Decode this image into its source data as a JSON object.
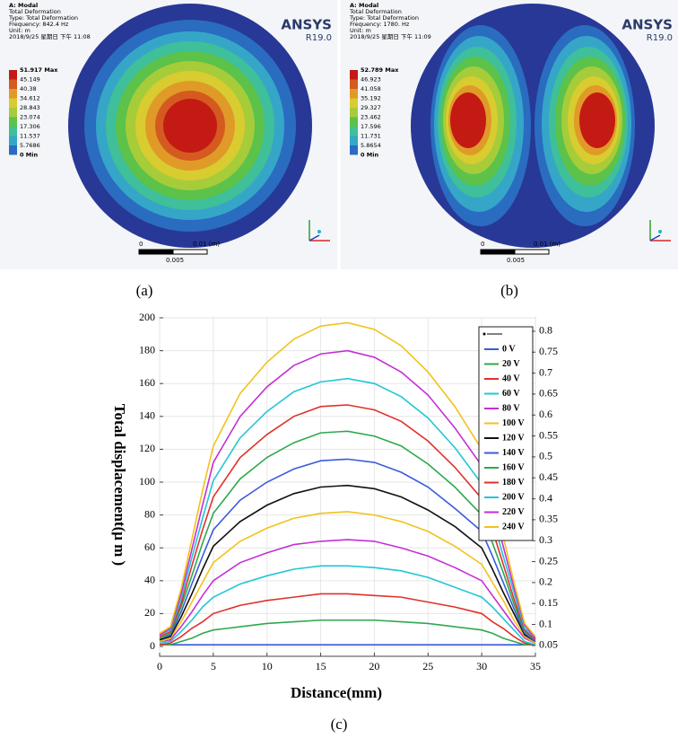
{
  "panels": [
    {
      "label": "(a)",
      "header": [
        "A: Modal",
        "Total Deformation",
        "Type: Total Deformation",
        "Frequency: 842.4 Hz",
        "Unit: m",
        "2018/9/25 星期日 下午 11:08"
      ],
      "legend": [
        "51.917 Max",
        "45.149",
        "40.38",
        "34.612",
        "28.843",
        "23.074",
        "17.306",
        "11.537",
        "5.7686",
        "0 Min"
      ],
      "brand": "ANSYS",
      "version": "R19.0",
      "scale": [
        "0",
        "0.01 (m)",
        "0.005"
      ]
    },
    {
      "label": "(b)",
      "header": [
        "A: Modal",
        "Total Deformation",
        "Type: Total Deformation",
        "Frequency: 1780. Hz",
        "Unit: m",
        "2018/9/25 星期日 下午 11:09"
      ],
      "legend": [
        "52.789 Max",
        "46.923",
        "41.058",
        "35.192",
        "29.327",
        "23.462",
        "17.596",
        "11.731",
        "5.8654",
        "0 Min"
      ],
      "brand": "ANSYS",
      "version": "R19.0",
      "scale": [
        "0",
        "0.01 (m)",
        "0.005"
      ]
    }
  ],
  "chart_data": {
    "type": "line",
    "label": "(c)",
    "x_label": "Distance(mm)",
    "y_label": "Total displacement(μ m )",
    "x": [
      0,
      1,
      2,
      3,
      4,
      5,
      7.5,
      10,
      12.5,
      15,
      17.5,
      20,
      22.5,
      25,
      27.5,
      30,
      31,
      32,
      33,
      34,
      35
    ],
    "xlim": [
      0,
      35
    ],
    "xticks": [
      0,
      5,
      10,
      15,
      20,
      25,
      30,
      35
    ],
    "ylim": [
      -6,
      200
    ],
    "yticks": [
      0,
      20,
      40,
      60,
      80,
      100,
      120,
      140,
      160,
      180,
      200
    ],
    "y2lim": [
      0.024,
      0.832
    ],
    "y2ticks": [
      0.05,
      0.1,
      0.15,
      0.2,
      0.25,
      0.3,
      0.35,
      0.4,
      0.45,
      0.5,
      0.55,
      0.6,
      0.65,
      0.7,
      0.75,
      0.8
    ],
    "grid": true,
    "legend": "upper right",
    "series": [
      {
        "name": "0 V",
        "color": "#3b5bdb",
        "values": [
          1,
          1,
          1,
          1,
          1,
          1,
          1,
          1,
          1,
          1,
          1,
          1,
          1,
          1,
          1,
          1,
          1,
          1,
          1,
          1,
          1
        ]
      },
      {
        "name": "20 V",
        "color": "#2fa84f",
        "values": [
          1,
          1,
          3,
          5,
          8,
          10,
          12,
          14,
          15,
          16,
          16,
          16,
          15,
          14,
          12,
          10,
          8,
          5,
          3,
          1,
          1
        ]
      },
      {
        "name": "40 V",
        "color": "#e0312b",
        "values": [
          1,
          2,
          6,
          11,
          15,
          20,
          25,
          28,
          30,
          32,
          32,
          31,
          30,
          27,
          24,
          20,
          15,
          11,
          6,
          2,
          1
        ]
      },
      {
        "name": "60 V",
        "color": "#22c6d6",
        "values": [
          2,
          3,
          9,
          16,
          24,
          30,
          38,
          43,
          47,
          49,
          49,
          48,
          46,
          42,
          36,
          30,
          24,
          17,
          10,
          3,
          1
        ]
      },
      {
        "name": "80 V",
        "color": "#c42fd6",
        "values": [
          3,
          4,
          12,
          21,
          31,
          40,
          51,
          57,
          62,
          64,
          65,
          64,
          60,
          55,
          48,
          40,
          31,
          22,
          13,
          5,
          2
        ]
      },
      {
        "name": "100 V",
        "color": "#f2c21a",
        "values": [
          3,
          5,
          15,
          27,
          39,
          51,
          64,
          72,
          78,
          81,
          82,
          80,
          76,
          70,
          61,
          50,
          39,
          28,
          16,
          6,
          2
        ]
      },
      {
        "name": "120 V",
        "color": "#111111",
        "values": [
          4,
          6,
          18,
          32,
          47,
          61,
          76,
          86,
          93,
          97,
          98,
          96,
          91,
          83,
          73,
          60,
          47,
          33,
          20,
          7,
          3
        ]
      },
      {
        "name": "140 V",
        "color": "#3b5bdb",
        "values": [
          5,
          7,
          21,
          38,
          55,
          71,
          89,
          100,
          108,
          113,
          114,
          112,
          106,
          97,
          84,
          70,
          55,
          39,
          23,
          8,
          3
        ]
      },
      {
        "name": "160 V",
        "color": "#2fa84f",
        "values": [
          5,
          8,
          24,
          43,
          63,
          81,
          102,
          115,
          124,
          130,
          131,
          128,
          122,
          111,
          97,
          80,
          63,
          45,
          26,
          9,
          4
        ]
      },
      {
        "name": "180 V",
        "color": "#e0312b",
        "values": [
          6,
          9,
          26,
          49,
          71,
          91,
          115,
          129,
          140,
          146,
          147,
          144,
          137,
          125,
          109,
          90,
          71,
          50,
          29,
          10,
          4
        ]
      },
      {
        "name": "200 V",
        "color": "#22c6d6",
        "values": [
          7,
          10,
          29,
          54,
          78,
          101,
          127,
          143,
          155,
          161,
          163,
          160,
          152,
          139,
          121,
          99,
          78,
          55,
          33,
          11,
          5
        ]
      },
      {
        "name": "220 V",
        "color": "#c42fd6",
        "values": [
          7,
          11,
          32,
          59,
          86,
          112,
          140,
          158,
          171,
          178,
          180,
          176,
          167,
          153,
          133,
          110,
          86,
          61,
          36,
          13,
          5
        ]
      },
      {
        "name": "240 V",
        "color": "#f2c21a",
        "values": [
          8,
          12,
          35,
          65,
          95,
          122,
          154,
          173,
          187,
          195,
          197,
          193,
          183,
          167,
          146,
          120,
          95,
          67,
          39,
          14,
          6
        ]
      }
    ]
  }
}
